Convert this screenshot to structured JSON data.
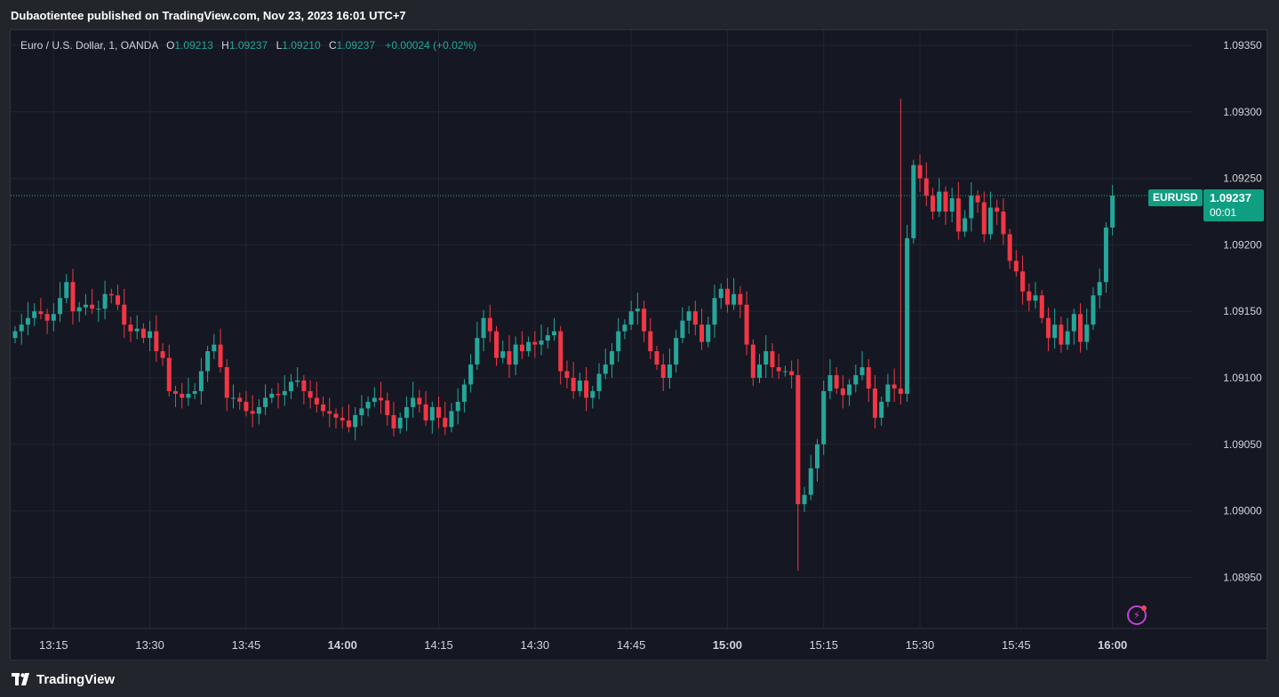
{
  "header": {
    "publisher_line": "Dubaotientee published on TradingView.com, Nov 23, 2023 16:01 UTC+7"
  },
  "legend": {
    "instrument": "Euro / U.S. Dollar, 1, OANDA",
    "open_label": "O",
    "open": "1.09213",
    "high_label": "H",
    "high": "1.09237",
    "low_label": "L",
    "low": "1.09210",
    "close_label": "C",
    "close": "1.09237",
    "change": "+0.00024 (+0.02%)"
  },
  "price_tag": {
    "symbol": "EURUSD",
    "price": "1.09237",
    "countdown": "00:01"
  },
  "footer": {
    "brand": "TradingView"
  },
  "colors": {
    "up": "#26a69a",
    "down": "#f23645",
    "background": "#151822",
    "grid": "#232632",
    "text": "#d1d4dc"
  },
  "icons": {
    "logo": "tradingview-logo-icon",
    "indicator": "lightning-bolt-icon"
  },
  "chart_data": {
    "type": "candlestick",
    "title": "Euro / U.S. Dollar, 1, OANDA",
    "ylim": [
      1.0892,
      1.0937
    ],
    "y_ticks": [
      "1.09350",
      "1.09300",
      "1.09250",
      "1.09200",
      "1.09150",
      "1.09100",
      "1.09050",
      "1.09000",
      "1.08950"
    ],
    "x_ticks": [
      {
        "label": "13:15",
        "minute": 6,
        "bold": false
      },
      {
        "label": "13:30",
        "minute": 21,
        "bold": false
      },
      {
        "label": "13:45",
        "minute": 36,
        "bold": false
      },
      {
        "label": "14:00",
        "minute": 51,
        "bold": true
      },
      {
        "label": "14:15",
        "minute": 66,
        "bold": false
      },
      {
        "label": "14:30",
        "minute": 81,
        "bold": false
      },
      {
        "label": "14:45",
        "minute": 96,
        "bold": false
      },
      {
        "label": "15:00",
        "minute": 111,
        "bold": true
      },
      {
        "label": "15:15",
        "minute": 126,
        "bold": false
      },
      {
        "label": "15:30",
        "minute": 141,
        "bold": false
      },
      {
        "label": "15:45",
        "minute": 156,
        "bold": false
      },
      {
        "label": "16:00",
        "minute": 171,
        "bold": true
      }
    ],
    "last_price": 1.09237,
    "close_prices": [
      1.09135,
      1.0914,
      1.09145,
      1.0915,
      1.09148,
      1.09143,
      1.09148,
      1.0916,
      1.09172,
      1.0915,
      1.09153,
      1.09155,
      1.09152,
      1.09152,
      1.09163,
      1.09162,
      1.09155,
      1.0914,
      1.09135,
      1.09137,
      1.0913,
      1.09135,
      1.0912,
      1.09115,
      1.0909,
      1.09088,
      1.09085,
      1.09088,
      1.0909,
      1.09105,
      1.0912,
      1.09125,
      1.09108,
      1.09085,
      1.09085,
      1.09082,
      1.09075,
      1.09073,
      1.09078,
      1.09085,
      1.09088,
      1.09087,
      1.0909,
      1.09097,
      1.09098,
      1.0909,
      1.09085,
      1.0908,
      1.09075,
      1.09073,
      1.0907,
      1.09068,
      1.09063,
      1.09072,
      1.09077,
      1.09082,
      1.09085,
      1.09083,
      1.09072,
      1.09062,
      1.0907,
      1.09078,
      1.09085,
      1.0908,
      1.09068,
      1.09078,
      1.0907,
      1.09063,
      1.09075,
      1.09082,
      1.09095,
      1.0911,
      1.0913,
      1.09145,
      1.09135,
      1.09115,
      1.0912,
      1.0911,
      1.09125,
      1.0912,
      1.09127,
      1.09125,
      1.09128,
      1.09132,
      1.09135,
      1.09105,
      1.091,
      1.0909,
      1.09098,
      1.09085,
      1.0909,
      1.09103,
      1.0911,
      1.0912,
      1.09135,
      1.0914,
      1.0915,
      1.09152,
      1.09135,
      1.0912,
      1.0911,
      1.091,
      1.0911,
      1.0913,
      1.09143,
      1.0915,
      1.0914,
      1.09127,
      1.0914,
      1.0916,
      1.09167,
      1.09155,
      1.09163,
      1.09155,
      1.09125,
      1.091,
      1.0911,
      1.0912,
      1.09108,
      1.09105,
      1.09105,
      1.09102,
      1.09005,
      1.09012,
      1.09032,
      1.0905,
      1.0909,
      1.09102,
      1.09092,
      1.09087,
      1.09095,
      1.09102,
      1.09108,
      1.09092,
      1.0907,
      1.09082,
      1.09095,
      1.09092,
      1.09088,
      1.09205,
      1.0926,
      1.0925,
      1.09237,
      1.09225,
      1.0924,
      1.09225,
      1.09235,
      1.0921,
      1.0922,
      1.09237,
      1.09232,
      1.09208,
      1.09228,
      1.09225,
      1.09208,
      1.09188,
      1.0918,
      1.09165,
      1.09158,
      1.09162,
      1.09145,
      1.0913,
      1.0914,
      1.09125,
      1.09135,
      1.09148,
      1.09127,
      1.0914,
      1.09162,
      1.09172,
      1.09213,
      1.09237
    ]
  }
}
